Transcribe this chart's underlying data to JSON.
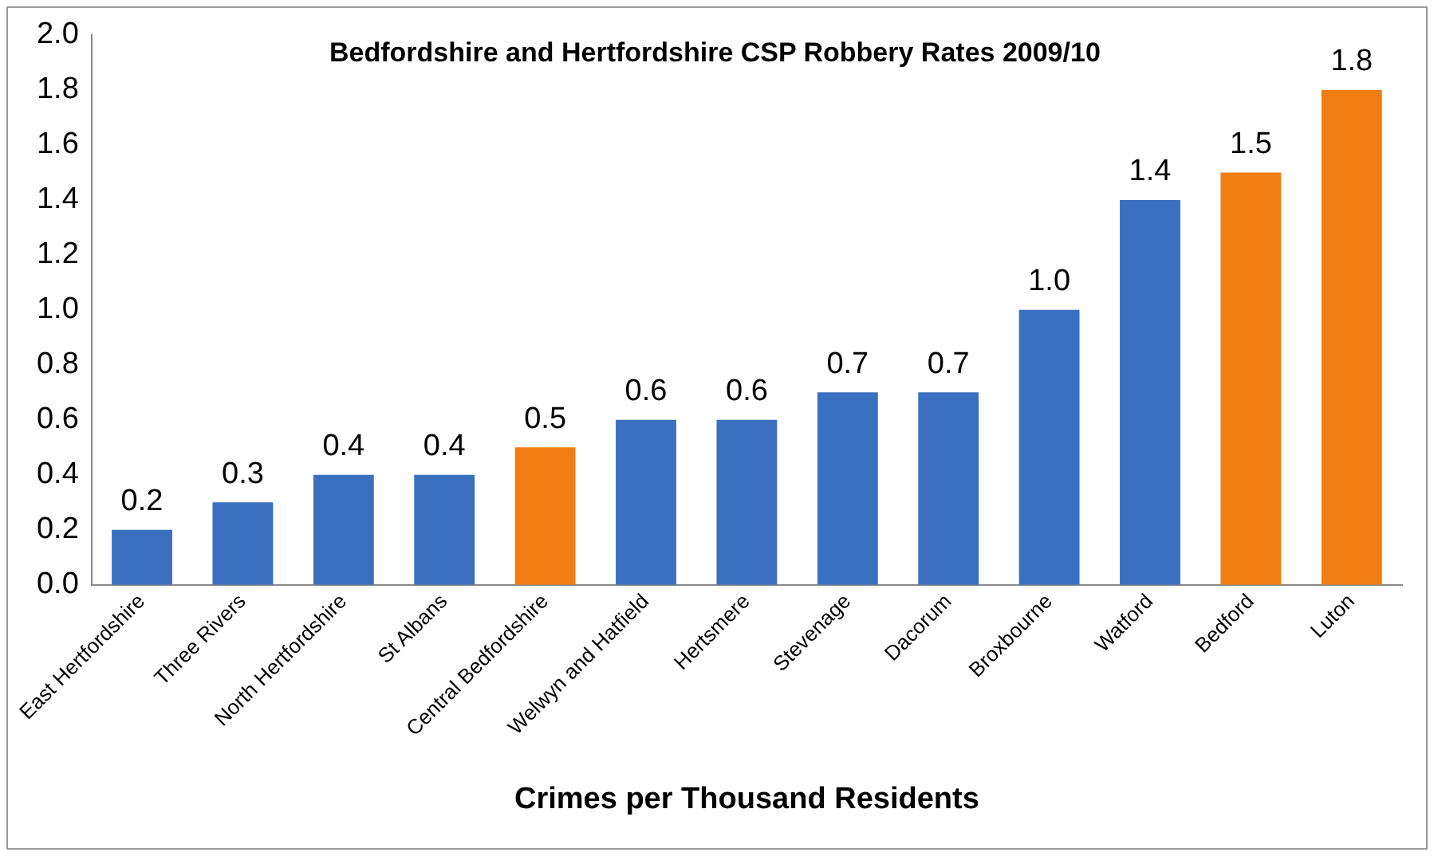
{
  "chart_data": {
    "type": "bar",
    "title": "Bedfordshire and Hertfordshire CSP Robbery Rates 2009/10",
    "xlabel": "Crimes per Thousand Residents",
    "categories": [
      "East Hertfordshire",
      "Three Rivers",
      "North Hertfordshire",
      "St Albans",
      "Central Bedfordshire",
      "Welwyn and Hatfield",
      "Hertsmere",
      "Stevenage",
      "Dacorum",
      "Broxbourne",
      "Watford",
      "Bedford",
      "Luton"
    ],
    "values": [
      0.2,
      0.3,
      0.4,
      0.4,
      0.5,
      0.6,
      0.6,
      0.7,
      0.7,
      1.0,
      1.4,
      1.5,
      1.8
    ],
    "colors": [
      "#3b6fbf",
      "#3b6fbf",
      "#3b6fbf",
      "#3b6fbf",
      "#ef7d12",
      "#3b6fbf",
      "#3b6fbf",
      "#3b6fbf",
      "#3b6fbf",
      "#3b6fbf",
      "#3b6fbf",
      "#ef7d12",
      "#ef7d12"
    ],
    "value_labels": [
      "0.2",
      "0.3",
      "0.4",
      "0.4",
      "0.5",
      "0.6",
      "0.6",
      "0.7",
      "0.7",
      "1.0",
      "1.4",
      "1.5",
      "1.8"
    ],
    "ylim": [
      0,
      2
    ],
    "yticks": [
      {
        "value": 0,
        "label": "0.0"
      },
      0.2,
      0.4,
      0.6,
      0.8,
      {
        "value": 1,
        "label": "1.0"
      },
      1.2,
      1.4,
      1.6,
      1.8,
      {
        "value": 2,
        "label": "2.0"
      }
    ],
    "grid": false,
    "legend": false
  }
}
